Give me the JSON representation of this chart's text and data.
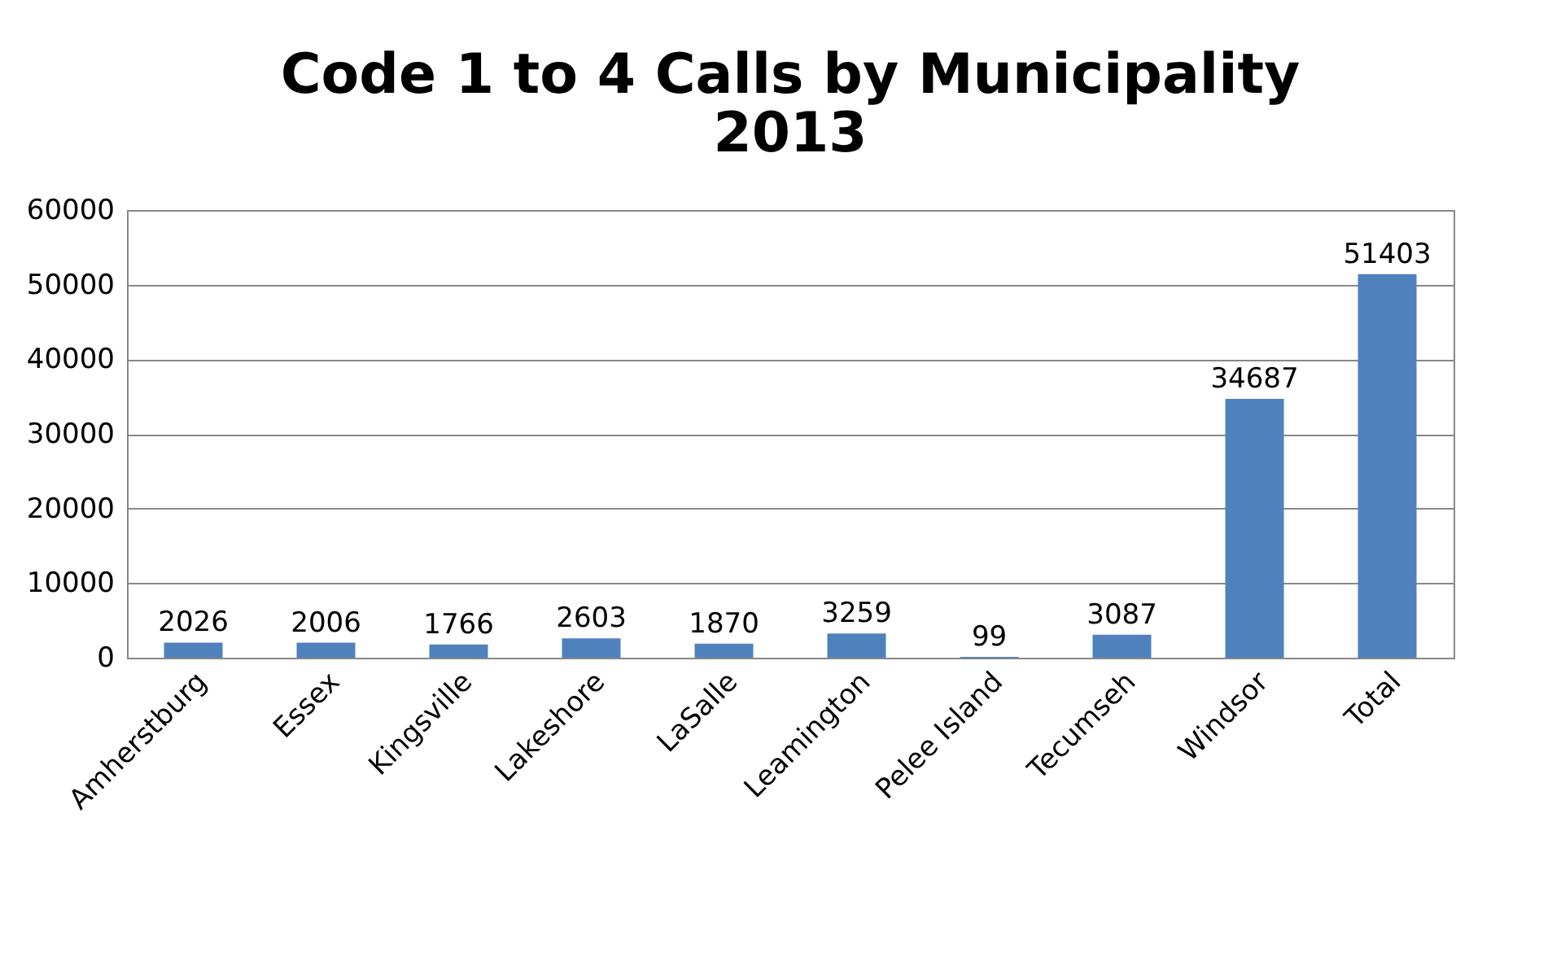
{
  "chart_data": {
    "type": "bar",
    "title": "Code 1 to 4 Calls by Municipality\n2013",
    "categories": [
      "Amherstburg",
      "Essex",
      "Kingsville",
      "Lakeshore",
      "LaSalle",
      "Leamington",
      "Pelee Island",
      "Tecumseh",
      "Windsor",
      "Total"
    ],
    "values": [
      2026,
      2006,
      1766,
      2603,
      1870,
      3259,
      99,
      3087,
      34687,
      51403
    ],
    "color": "#4f81bd",
    "ylim": [
      0,
      60000
    ],
    "yticks": [
      0,
      10000,
      20000,
      30000,
      40000,
      50000,
      60000
    ],
    "grid": "y",
    "data_labels": true
  }
}
